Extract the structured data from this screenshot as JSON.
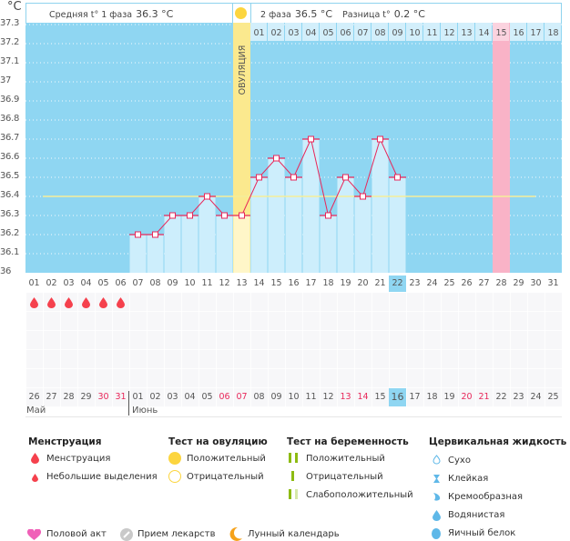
{
  "unit": "°C",
  "header": {
    "phase1_label": "Средняя t° 1 фаза",
    "phase1_value": "36.3 °C",
    "phase2_label": "2 фаза",
    "phase2_value": "36.5 °C",
    "diff_label": "Разница t°",
    "diff_value": "0.2 °C",
    "ovulation_label": "ОВУЛЯЦИЯ"
  },
  "colors": {
    "plot_bg": "#8fd6f2",
    "bar": "#cdeefc",
    "line": "#e8275a",
    "ovulation": "#fbe98e",
    "highlight_day": "#f9b3c7",
    "coverline": "#f5ee9a",
    "menstruation": "#f5414d"
  },
  "chart_data": {
    "type": "bar",
    "title": "",
    "xlabel": "",
    "ylabel": "°C",
    "ylim": [
      36.0,
      37.3
    ],
    "yticks": [
      "37.3",
      "37.2",
      "37.1",
      "37",
      "36.9",
      "36.8",
      "36.7",
      "36.6",
      "36.5",
      "36.4",
      "36.3",
      "36.2",
      "36.1",
      "36"
    ],
    "categories": [
      "01",
      "02",
      "03",
      "04",
      "05",
      "06",
      "07",
      "08",
      "09",
      "10",
      "11",
      "12",
      "13",
      "14",
      "15",
      "16",
      "17",
      "18",
      "19",
      "20",
      "21",
      "22",
      "23",
      "24",
      "25",
      "26",
      "27",
      "28",
      "29",
      "30",
      "31"
    ],
    "series": [
      {
        "name": "Базальная температура",
        "values": [
          null,
          null,
          null,
          null,
          null,
          null,
          36.2,
          36.2,
          36.3,
          36.3,
          36.4,
          36.3,
          36.3,
          36.5,
          36.6,
          36.5,
          36.7,
          36.3,
          36.5,
          36.4,
          36.7,
          36.5,
          null,
          null,
          null,
          null,
          null,
          null,
          null,
          null,
          null
        ]
      }
    ],
    "coverline": {
      "value": 36.4,
      "from_day": "02",
      "to_day": "30"
    },
    "ovulation_day": "13",
    "highlighted_day": "28",
    "current_day": "22",
    "phase2_day_labels": [
      "01",
      "02",
      "03",
      "04",
      "05",
      "06",
      "07",
      "08",
      "09",
      "10",
      "11",
      "12",
      "13",
      "14",
      "15",
      "16",
      "17",
      "18"
    ],
    "phase2_highlight": "15",
    "menstruation_days": [
      "01",
      "02",
      "03",
      "04",
      "05",
      "06"
    ],
    "grid": true,
    "legend": "none"
  },
  "calendar": {
    "dates": [
      "26",
      "27",
      "28",
      "29",
      "30",
      "31",
      "01",
      "02",
      "03",
      "04",
      "05",
      "06",
      "07",
      "08",
      "09",
      "10",
      "11",
      "12",
      "13",
      "14",
      "15",
      "16",
      "17",
      "18",
      "19",
      "20",
      "21",
      "22",
      "23",
      "24",
      "25"
    ],
    "weekend": [
      "30",
      "31",
      "06",
      "07",
      "13",
      "14",
      "20",
      "21"
    ],
    "today": "16",
    "months": [
      "Май",
      "Июнь"
    ]
  },
  "legend": {
    "menstruation": {
      "title": "Менструация",
      "items": [
        "Менструация",
        "Небольшие выделения"
      ]
    },
    "ovulation_test": {
      "title": "Тест на овуляцию",
      "items": [
        "Положительный",
        "Отрицательный"
      ]
    },
    "pregnancy_test": {
      "title": "Тест на беременность",
      "items": [
        "Положительный",
        "Отрицательный",
        "Слабоположительный"
      ]
    },
    "cervical": {
      "title": "Цервикальная жидкость",
      "items": [
        "Сухо",
        "Клейкая",
        "Кремообразная",
        "Водянистая",
        "Яичный белок"
      ]
    },
    "other": [
      "Половой акт",
      "Прием лекарств",
      "Лунный календарь"
    ]
  }
}
